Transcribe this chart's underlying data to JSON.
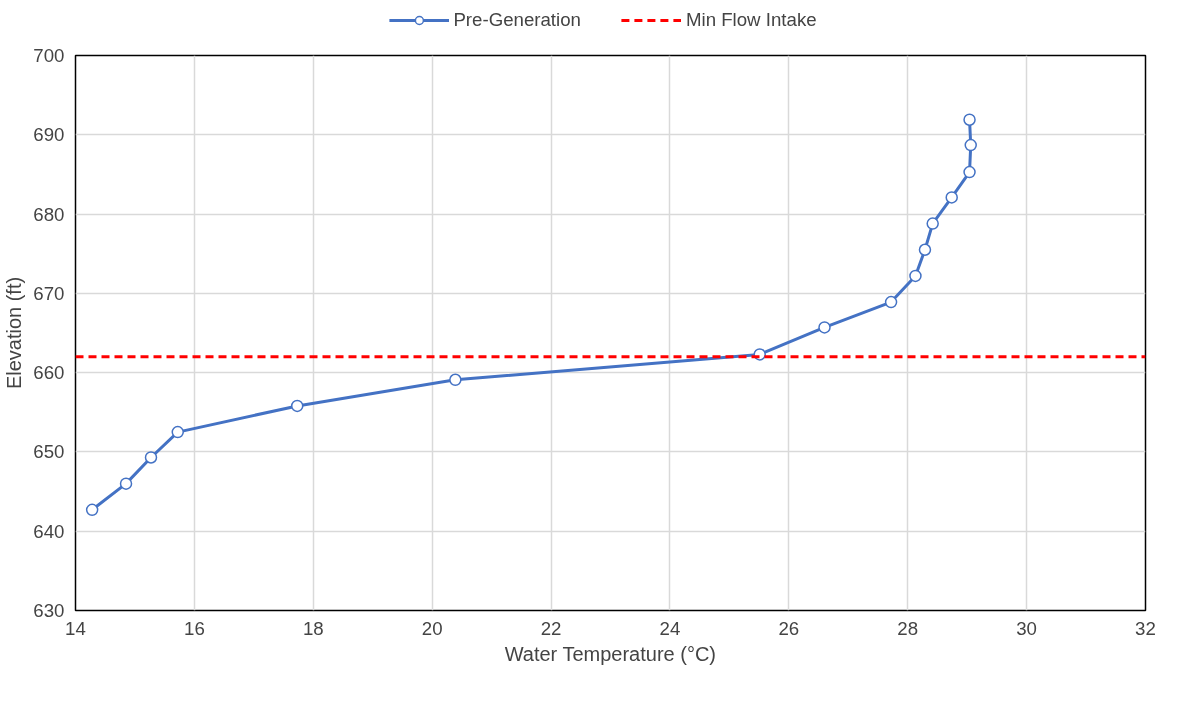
{
  "chart_data": {
    "type": "line",
    "xlabel": "Water Temperature (°C)",
    "ylabel": "Elevation (ft)",
    "xlim": [
      14,
      32
    ],
    "xticks": [
      14,
      16,
      18,
      20,
      22,
      24,
      26,
      28,
      30,
      32
    ],
    "ylim": [
      630,
      700
    ],
    "yticks": [
      630,
      640,
      650,
      660,
      670,
      680,
      690,
      700
    ],
    "grid": true,
    "legend": "top",
    "marker": "circle",
    "line_style": "solid",
    "series": [
      {
        "name": "Pre-Generation",
        "color": "#4472c4",
        "x": [
          14.28,
          14.85,
          15.27,
          15.72,
          17.73,
          20.39,
          25.51,
          26.6,
          27.72,
          28.13,
          28.29,
          28.42,
          28.74,
          29.04,
          29.06,
          29.04
        ],
        "values": [
          642.7,
          646.0,
          649.3,
          652.5,
          655.8,
          659.1,
          662.3,
          665.7,
          668.9,
          672.2,
          675.5,
          678.8,
          682.1,
          685.3,
          688.7,
          691.9
        ]
      }
    ],
    "ref_lines": [
      {
        "axis": "y",
        "value": 662,
        "label": "Min Flow Intake",
        "color": "#ff0000",
        "line_style": "dashed"
      }
    ]
  }
}
